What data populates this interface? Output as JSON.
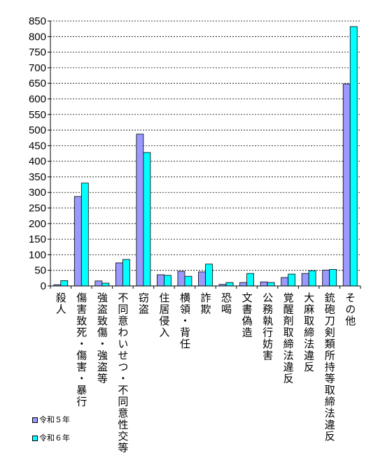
{
  "chart_data": {
    "type": "bar",
    "categories": [
      "殺人",
      "傷害致死・傷害・暴行",
      "強盗致傷・強盗等",
      "不同意わいせつ・不同意性交等",
      "窃盗",
      "住居侵入",
      "横領・背任",
      "詐欺",
      "恐喝",
      "文書偽造",
      "公務執行妨害",
      "覚醒剤取締法違反",
      "大麻取締法違反",
      "銃砲刀剣類所持等取締法違反",
      "その他"
    ],
    "series": [
      {
        "name": "令和５年",
        "color": "#9999ff",
        "values": [
          4,
          287,
          16,
          74,
          487,
          36,
          47,
          45,
          5,
          11,
          13,
          27,
          40,
          51,
          648
        ]
      },
      {
        "name": "令和６年",
        "color": "#00ffff",
        "values": [
          17,
          330,
          9,
          85,
          428,
          34,
          31,
          70,
          11,
          40,
          11,
          38,
          49,
          53,
          832
        ]
      }
    ],
    "ylim": [
      0,
      850
    ],
    "yticks": [
      0,
      50,
      100,
      150,
      200,
      250,
      300,
      350,
      400,
      450,
      500,
      550,
      600,
      650,
      700,
      750,
      800,
      850
    ],
    "grid": true,
    "legend": "bottom-left"
  }
}
